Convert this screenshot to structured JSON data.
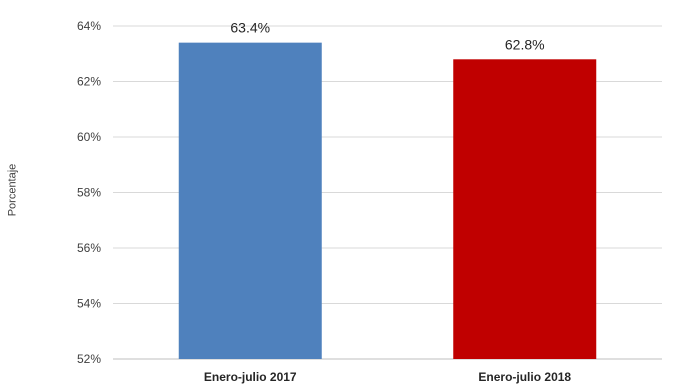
{
  "chart_data": {
    "type": "bar",
    "title": "",
    "xlabel": "",
    "ylabel": "Porcentaje",
    "categories": [
      "Enero-julio 2017",
      "Enero-julio 2018"
    ],
    "values": [
      63.4,
      62.8
    ],
    "data_labels": [
      "63.4%",
      "62.8%"
    ],
    "bar_colors": [
      "#4F81BD",
      "#C00000"
    ],
    "ylim": [
      52,
      64
    ],
    "yticks": [
      52,
      54,
      56,
      58,
      60,
      62,
      64
    ],
    "ytick_labels": [
      "52%",
      "54%",
      "56%",
      "58%",
      "60%",
      "62%",
      "64%"
    ],
    "grid": true,
    "legend": "none"
  }
}
